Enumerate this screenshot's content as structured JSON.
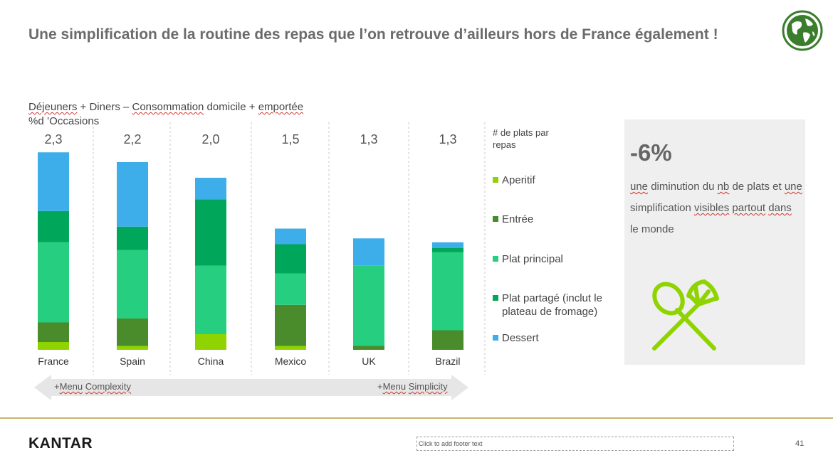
{
  "title": "Une simplification de la routine des repas que l’on retrouve d’ailleurs hors de France également !",
  "subtitle": {
    "line1_parts": [
      "Déjeuners",
      " + Diners – ",
      "Consommation",
      " domicile + ",
      "emportée"
    ],
    "line2": "%d ’Occasions"
  },
  "colors": {
    "aperitif": "#8fd400",
    "entree": "#4a8b2c",
    "plat_principal": "#25cf7f",
    "plat_partage": "#00a65a",
    "dessert": "#3daee9",
    "arrow": "#e6e6e6",
    "gold": "#c9b46a"
  },
  "legend": {
    "header": "# de plats par repas",
    "items": [
      {
        "key": "aperitif",
        "label": "Aperitif"
      },
      {
        "key": "entree",
        "label": "Entrée"
      },
      {
        "key": "plat_principal",
        "label": "Plat principal"
      },
      {
        "key": "plat_partage",
        "label": "Plat partagé (inclut le plateau de fromage)"
      },
      {
        "key": "dessert",
        "label": "Dessert"
      }
    ]
  },
  "chart_data": {
    "type": "bar",
    "stacked": true,
    "title": "Déjeuners + Diners – Consommation domicile + emportée",
    "ylabel": "%d ’Occasions",
    "categories": [
      "France",
      "Spain",
      "China",
      "Mexico",
      "UK",
      "Brazil"
    ],
    "totals_label": [
      "2,3",
      "2,2",
      "2,0",
      "1,5",
      "1,3",
      "1,3"
    ],
    "ylim": [
      0,
      100
    ],
    "series": [
      {
        "name": "Aperitif",
        "key": "aperitif",
        "values": [
          4,
          2,
          8,
          2,
          0,
          0
        ]
      },
      {
        "name": "Entrée",
        "key": "entree",
        "values": [
          10,
          14,
          0,
          21,
          2,
          10
        ]
      },
      {
        "name": "Plat principal",
        "key": "plat_principal",
        "values": [
          41,
          35,
          35,
          16,
          41,
          40
        ]
      },
      {
        "name": "Plat partagé (inclut le plateau de fromage)",
        "key": "plat_partage",
        "values": [
          16,
          12,
          34,
          15,
          0,
          2
        ]
      },
      {
        "name": "Dessert",
        "key": "dessert",
        "values": [
          30,
          33,
          11,
          8,
          14,
          3
        ]
      }
    ]
  },
  "panel": {
    "big": "-6%",
    "text_parts": [
      {
        "t": "une",
        "sq": true
      },
      {
        "t": " diminution du ",
        "sq": false
      },
      {
        "t": "nb",
        "sq": true
      },
      {
        "t": " de plats et ",
        "sq": false
      },
      {
        "t": "une",
        "sq": true
      },
      {
        "t": " simplification ",
        "sq": false
      },
      {
        "t": "visibles",
        "sq": true
      },
      {
        "t": " ",
        "sq": false
      },
      {
        "t": "partout",
        "sq": true
      },
      {
        "t": " ",
        "sq": false
      },
      {
        "t": "dans",
        "sq": true
      },
      {
        "t": " le monde",
        "sq": false
      }
    ]
  },
  "arrow": {
    "left_prefix": "+",
    "left_word1": "Menu",
    "left_word2": "Complexity",
    "right_prefix": "+",
    "right_word1": "Menu",
    "right_word2": "Simplicity"
  },
  "footer": {
    "logo": "KANTAR",
    "placeholder": "Click to add footer text",
    "page": "41"
  }
}
